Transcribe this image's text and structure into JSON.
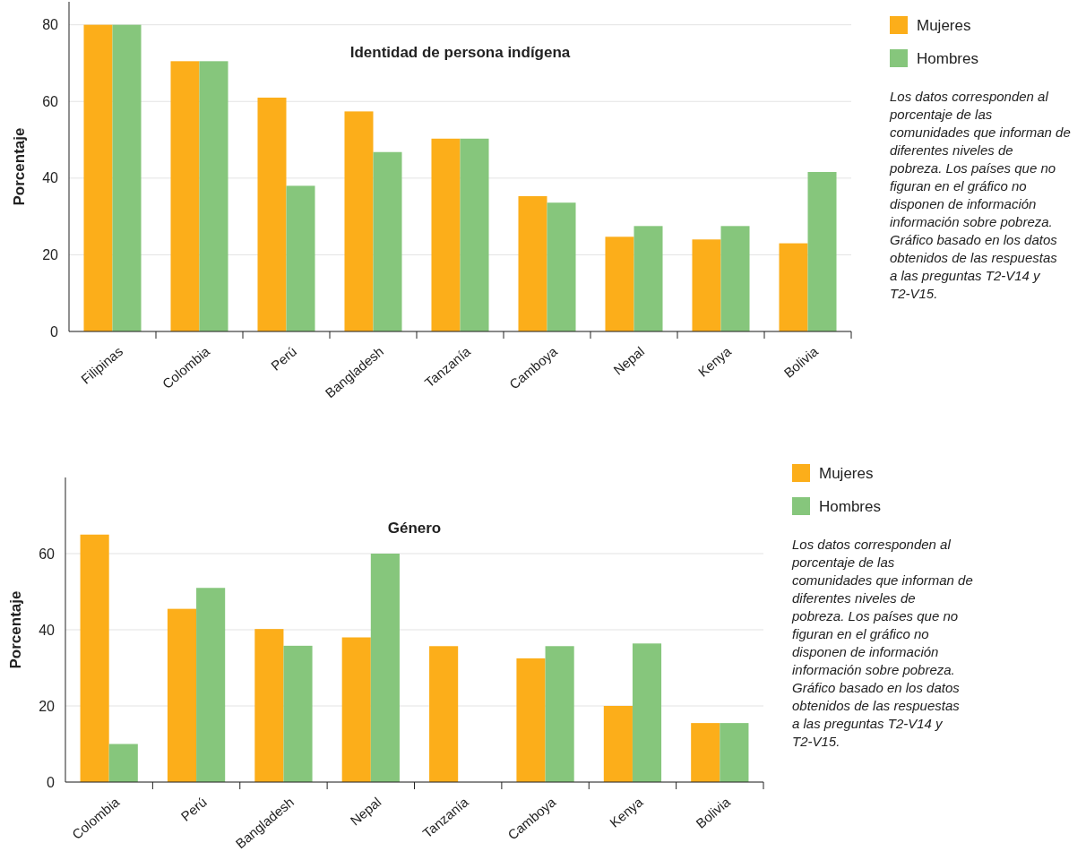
{
  "chart_data": [
    {
      "type": "bar",
      "title": "Identidad de persona indígena",
      "ylabel": "Porcentaje",
      "categories": [
        "Filipinas",
        "Colombia",
        "Perú",
        "Bangladesh",
        "Tanzanía",
        "Camboya",
        "Nepal",
        "Kenya",
        "Bolivia"
      ],
      "series": [
        {
          "name": "Mujeres",
          "color": "#fcae1a",
          "values": [
            80,
            70.5,
            61,
            57.4,
            50.3,
            35.3,
            24.7,
            24,
            23
          ]
        },
        {
          "name": "Hombres",
          "color": "#86c67c",
          "values": [
            80,
            70.5,
            38,
            46.8,
            50.3,
            33.6,
            27.5,
            27.5,
            41.6
          ]
        }
      ],
      "ylim": [
        0,
        86
      ],
      "yticks": [
        0,
        20,
        40,
        60,
        80
      ],
      "grid": "y",
      "legend": "right",
      "annotations": [
        "Los datos corresponden al porcentaje de las comunidades que informan de diferentes niveles de pobreza. Los países que no figuran en el gráfico no disponen de información información sobre pobreza. Gráfico basado en los datos obtenidos de las respuestas a las preguntas T2-V14 y T2-V15."
      ]
    },
    {
      "type": "bar",
      "title": "Género",
      "ylabel": "Porcentaje",
      "categories": [
        "Colombia",
        "Perú",
        "Bangladesh",
        "Nepal",
        "Tanzanía",
        "Camboya",
        "Kenya",
        "Bolivia"
      ],
      "series": [
        {
          "name": "Mujeres",
          "color": "#fcae1a",
          "values": [
            65,
            45.5,
            40.2,
            38,
            35.7,
            32.5,
            20,
            15.5
          ]
        },
        {
          "name": "Hombres",
          "color": "#86c67c",
          "values": [
            10,
            51,
            35.8,
            60,
            null,
            35.7,
            36.4,
            15.5
          ]
        }
      ],
      "ylim": [
        0,
        80
      ],
      "yticks": [
        0,
        20,
        40,
        60
      ],
      "grid": "y",
      "legend": "right",
      "annotations": [
        "Los datos corresponden al porcentaje de las comunidades que informan de diferentes niveles de pobreza. Los países que no figuran en el gráfico no disponen de información información sobre pobreza. Gráfico basado en los datos obtenidos de las respuestas a las preguntas T2-V14 y T2-V15."
      ]
    }
  ]
}
